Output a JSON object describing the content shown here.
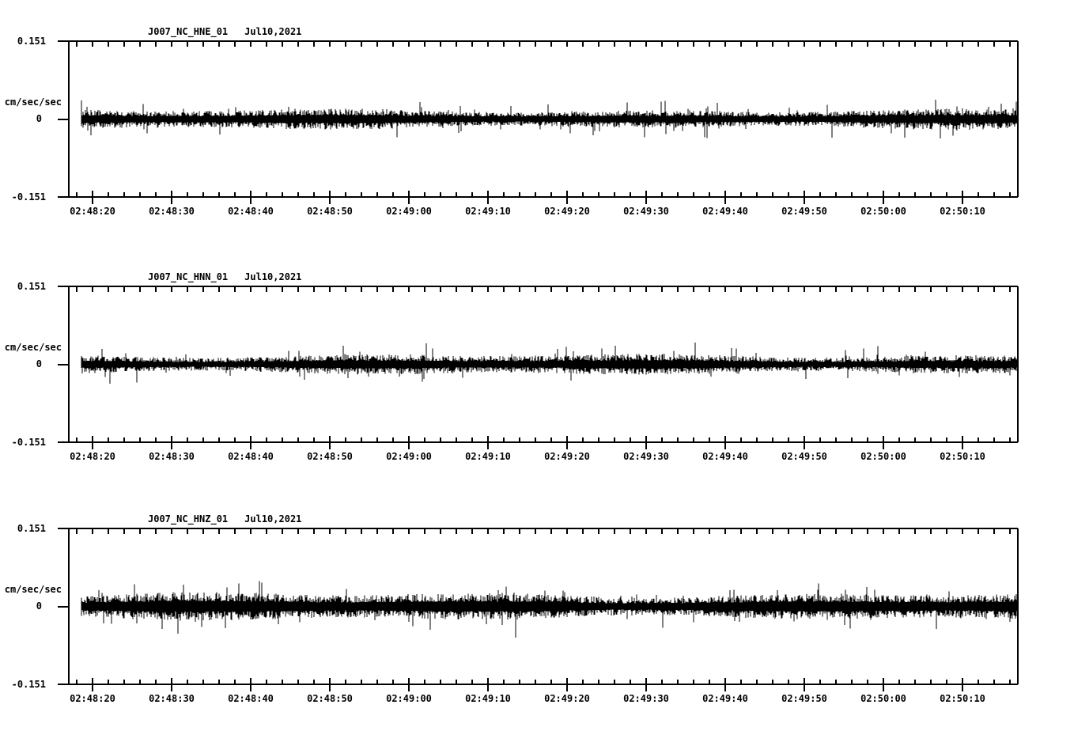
{
  "app": {
    "background": "#ffffff",
    "ink": "#000000"
  },
  "chart_data": [
    {
      "type": "line",
      "kind": "seismogram",
      "title": "J007_NC_HNE_01   Jul10,2021",
      "station_channel": "J007_NC_HNE_01",
      "date": "Jul10,2021",
      "ylabel": "cm/sec/sec",
      "ylim": [
        -0.151,
        0.151
      ],
      "yticks": {
        "max": "0.151",
        "zero": "0",
        "min": "-0.151"
      },
      "x_axis_start": "02:48:17",
      "x_axis_end": "02:50:17",
      "trace_start": "02:48:18.6",
      "x_major_tick_interval_seconds": 10,
      "x_minor_tick_interval_seconds": 2,
      "x_tick_labels": [
        "02:48:20",
        "02:48:30",
        "02:48:40",
        "02:48:50",
        "02:49:00",
        "02:49:10",
        "02:49:20",
        "02:49:30",
        "02:49:40",
        "02:49:50",
        "02:50:00",
        "02:50:10"
      ],
      "noise": {
        "band_amplitude": 0.014,
        "peak_amplitude": 0.04,
        "seed": 7
      }
    },
    {
      "type": "line",
      "kind": "seismogram",
      "title": "J007_NC_HNN_01   Jul10,2021",
      "station_channel": "J007_NC_HNN_01",
      "date": "Jul10,2021",
      "ylabel": "cm/sec/sec",
      "ylim": [
        -0.151,
        0.151
      ],
      "yticks": {
        "max": "0.151",
        "zero": "0",
        "min": "-0.151"
      },
      "x_axis_start": "02:48:17",
      "x_axis_end": "02:50:17",
      "trace_start": "02:48:18.6",
      "x_major_tick_interval_seconds": 10,
      "x_minor_tick_interval_seconds": 2,
      "x_tick_labels": [
        "02:48:20",
        "02:48:30",
        "02:48:40",
        "02:48:50",
        "02:49:00",
        "02:49:10",
        "02:49:20",
        "02:49:30",
        "02:49:40",
        "02:49:50",
        "02:50:00",
        "02:50:10"
      ],
      "noise": {
        "band_amplitude": 0.0145,
        "peak_amplitude": 0.04,
        "seed": 13
      }
    },
    {
      "type": "line",
      "kind": "seismogram",
      "title": "J007_NC_HNZ_01   Jul10,2021",
      "station_channel": "J007_NC_HNZ_01",
      "date": "Jul10,2021",
      "ylabel": "cm/sec/sec",
      "ylim": [
        -0.151,
        0.151
      ],
      "yticks": {
        "max": "0.151",
        "zero": "0",
        "min": "-0.151"
      },
      "x_axis_start": "02:48:17",
      "x_axis_end": "02:50:17",
      "trace_start": "02:48:18.6",
      "x_major_tick_interval_seconds": 10,
      "x_minor_tick_interval_seconds": 2,
      "x_tick_labels": [
        "02:48:20",
        "02:48:30",
        "02:48:40",
        "02:48:50",
        "02:49:00",
        "02:49:10",
        "02:49:20",
        "02:49:30",
        "02:49:40",
        "02:49:50",
        "02:50:00",
        "02:50:10"
      ],
      "noise": {
        "band_amplitude": 0.0195,
        "peak_amplitude": 0.052,
        "seed": 29
      }
    }
  ]
}
